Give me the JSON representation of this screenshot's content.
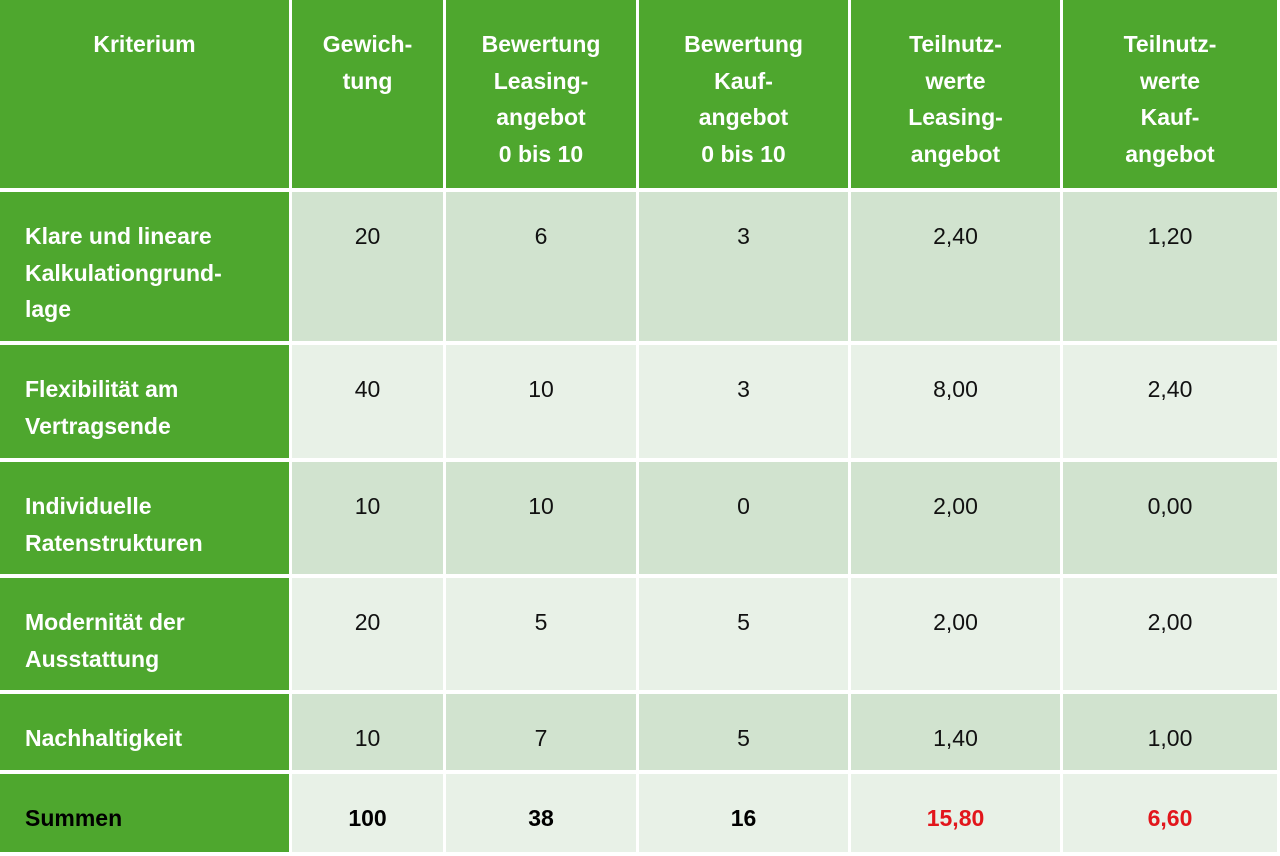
{
  "table": {
    "header": [
      "Kriterium",
      "Gewich-\ntung",
      "Bewertung\nLeasing-\nangebot\n0 bis 10",
      "Bewertung\nKauf-\nangebot\n0 bis 10",
      "Teilnutz-\nwerte\nLeasing-\nangebot",
      "Teilnutz-\nwerte\nKauf-\nangebot"
    ],
    "rows": [
      [
        "Klare und lineare\nKalkulationgrund-\nlage",
        "20",
        "6",
        "3",
        "2,40",
        "1,20"
      ],
      [
        "Flexibilität am\nVertragsende",
        "40",
        "10",
        "3",
        "8,00",
        "2,40"
      ],
      [
        "Individuelle\nRatenstrukturen",
        "10",
        "10",
        "0",
        "2,00",
        "0,00"
      ],
      [
        "Modernität der\nAusstattung",
        "20",
        "5",
        "5",
        "2,00",
        "2,00"
      ],
      [
        "Nachhaltigkeit",
        "10",
        "7",
        "5",
        "1,40",
        "1,00"
      ]
    ],
    "totals": [
      "Summen",
      "100",
      "38",
      "16",
      "15,80",
      "6,60"
    ]
  }
}
